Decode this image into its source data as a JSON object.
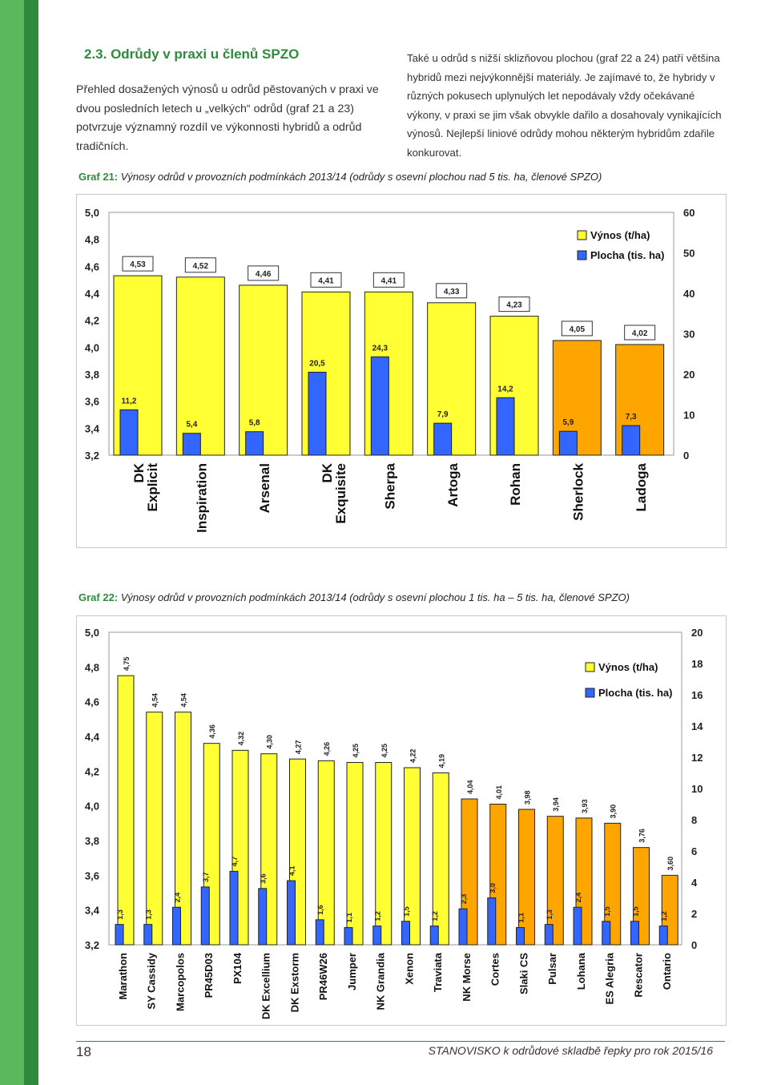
{
  "section": {
    "title": "2.3. Odrůdy v praxi u členů SPZO",
    "paragraph_left": "Přehled dosažených výnosů u odrůd pěstovaných v praxi ve dvou posledních letech u „velkých“ odrůd (graf 21 a 23) potvrzuje významný rozdíl ve výkonnosti hybridů a odrůd tradičních.",
    "paragraph_right": "Také u odrůd s nižší sklizňovou plochou (graf 22 a 24) patří většina hybridů mezi nejvýkonnější materiály. Je zajímavé to, že hybridy v různých pokusech uplynulých let nepodávaly vždy očekávané výkony, v praxi se jim však obvykle dařilo a dosahovaly vynikajících výnosů. Nejlepší liniové odrůdy mohou některým hybridům zdařile konkurovat."
  },
  "graf21": {
    "label": "Graf 21:",
    "caption": "Výnosy odrůd v provozních podmínkách 2013/14 (odrůdy s osevní plochou nad 5 tis. ha, členové SPZO)"
  },
  "graf22": {
    "label": "Graf 22:",
    "caption": "Výnosy odrůd v provozních podmínkách 2013/14 (odrůdy s osevní plochou 1 tis. ha – 5 tis. ha, členové SPZO)"
  },
  "footer": {
    "page": "18",
    "publication": "STANOVISKO k odrůdové skladbě řepky pro rok 2015/16"
  },
  "colors": {
    "yellow": "#ffff33",
    "orange": "#ffa500",
    "blue": "#3366ff",
    "green_dark": "#2e8b3e",
    "green_light": "#5cb85c"
  },
  "chart_data": [
    {
      "type": "bar",
      "title": "Graf 21",
      "legend": [
        "Výnos (t/ha)",
        "Plocha (tis. ha)"
      ],
      "legend_position": "top-right",
      "ylim": [
        3.2,
        5.0
      ],
      "y_ticks": [
        "5,0",
        "4,8",
        "4,6",
        "4,4",
        "4,2",
        "4,0",
        "3,8",
        "3,6",
        "3,4",
        "3,2"
      ],
      "y2lim": [
        0,
        60
      ],
      "y2_ticks": [
        "60",
        "50",
        "40",
        "30",
        "20",
        "10",
        "0"
      ],
      "categories": [
        "DK Explicit",
        "Inspiration",
        "Arsenal",
        "DK Exquisite",
        "Sherpa",
        "Artoga",
        "Rohan",
        "Sherlock",
        "Ladoga"
      ],
      "series": [
        {
          "name": "Výnos (t/ha)",
          "values": [
            4.53,
            4.52,
            4.46,
            4.41,
            4.41,
            4.33,
            4.23,
            4.05,
            4.02
          ],
          "labels": [
            "4,53",
            "4,52",
            "4,46",
            "4,41",
            "4,41",
            "4,33",
            "4,23",
            "4,05",
            "4,02"
          ],
          "bar_colors": [
            "yellow",
            "yellow",
            "yellow",
            "yellow",
            "yellow",
            "yellow",
            "yellow",
            "orange",
            "orange"
          ]
        },
        {
          "name": "Plocha (tis. ha)",
          "values": [
            11.2,
            5.4,
            5.8,
            20.5,
            24.3,
            7.9,
            14.2,
            5.9,
            7.3
          ],
          "labels": [
            "11,2",
            "5,4",
            "5,8",
            "20,5",
            "24,3",
            "7,9",
            "14,2",
            "5,9",
            "7,3"
          ]
        }
      ]
    },
    {
      "type": "bar",
      "title": "Graf 22",
      "legend": [
        "Výnos (t/ha)",
        "Plocha (tis. ha)"
      ],
      "legend_position": "top-right",
      "ylim": [
        3.2,
        5.0
      ],
      "y_ticks": [
        "5,0",
        "4,8",
        "4,6",
        "4,4",
        "4,2",
        "4,0",
        "3,8",
        "3,6",
        "3,4",
        "3,2"
      ],
      "y2lim": [
        0,
        20
      ],
      "y2_ticks": [
        "20",
        "18",
        "16",
        "14",
        "12",
        "10",
        "8",
        "6",
        "4",
        "2",
        "0"
      ],
      "categories": [
        "Marathon",
        "SY Cassidy",
        "Marcopolos",
        "PR45D03",
        "PX104",
        "DK Excellium",
        "DK Exstorm",
        "PR46W26",
        "Jumper",
        "NK Grandia",
        "Xenon",
        "Traviata",
        "NK Morse",
        "Cortes",
        "Slaki CS",
        "Pulsar",
        "Lohana",
        "ES Alegria",
        "Rescator",
        "Ontario"
      ],
      "series": [
        {
          "name": "Výnos (t/ha)",
          "values": [
            4.75,
            4.54,
            4.54,
            4.36,
            4.32,
            4.3,
            4.27,
            4.26,
            4.25,
            4.25,
            4.22,
            4.19,
            4.04,
            4.01,
            3.98,
            3.94,
            3.93,
            3.9,
            3.76,
            3.6
          ],
          "labels": [
            "4,75",
            "4,54",
            "4,54",
            "4,36",
            "4,32",
            "4,30",
            "4,27",
            "4,26",
            "4,25",
            "4,25",
            "4,22",
            "4,19",
            "4,04",
            "4,01",
            "3,98",
            "3,94",
            "3,93",
            "3,90",
            "3,76",
            "3,60"
          ],
          "bar_colors": [
            "yellow",
            "yellow",
            "yellow",
            "yellow",
            "yellow",
            "yellow",
            "yellow",
            "yellow",
            "yellow",
            "yellow",
            "yellow",
            "yellow",
            "orange",
            "orange",
            "orange",
            "orange",
            "orange",
            "orange",
            "orange",
            "orange"
          ]
        },
        {
          "name": "Plocha (tis. ha)",
          "values": [
            1.3,
            1.3,
            2.4,
            3.7,
            4.7,
            3.6,
            4.1,
            1.6,
            1.1,
            1.2,
            1.5,
            1.2,
            2.3,
            3.0,
            1.1,
            1.3,
            2.4,
            1.5,
            1.5,
            1.2
          ],
          "labels": [
            "1,3",
            "1,3",
            "2,4",
            "3,7",
            "4,7",
            "3,6",
            "4,1",
            "1,6",
            "1,1",
            "1,2",
            "1,5",
            "1,2",
            "2,3",
            "3,0",
            "1,1",
            "1,3",
            "2,4",
            "1,5",
            "1,5",
            "1,2"
          ]
        }
      ]
    }
  ]
}
